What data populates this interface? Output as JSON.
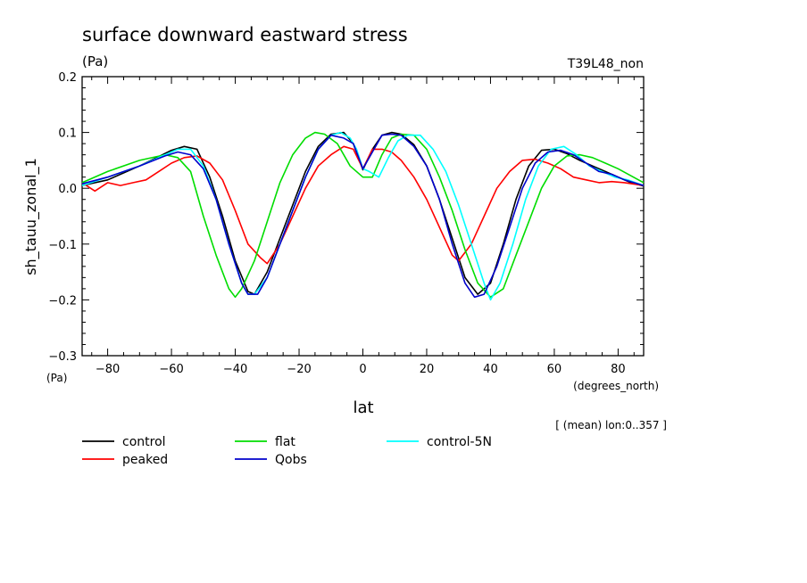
{
  "header": {
    "title": "surface downward eastward stress",
    "units": "(Pa)",
    "run_label": "T39L48_non",
    "mean_note": "[ (mean) lon:0..357 ]"
  },
  "chart_data": {
    "type": "line",
    "title": "surface downward eastward stress",
    "xlabel": "lat",
    "x_units": "(degrees_north)",
    "ylabel": "sh_tauu_zonal_1",
    "y_units": "(Pa)",
    "xlim": [
      -88,
      88
    ],
    "ylim": [
      -0.3,
      0.2
    ],
    "x_ticks": [
      -80,
      -60,
      -40,
      -20,
      0,
      20,
      40,
      60,
      80
    ],
    "x_tick_labels": [
      "−80",
      "−60",
      "−40",
      "−20",
      "0",
      "20",
      "40",
      "60",
      "80"
    ],
    "y_ticks": [
      0.2,
      0.1,
      0.0,
      -0.1,
      -0.2,
      -0.3
    ],
    "y_tick_labels": [
      "0.2",
      "0.1",
      "0.0",
      "−0.1",
      "−0.2",
      "−0.3"
    ],
    "grid": false,
    "legend_position": "bottom",
    "series": [
      {
        "name": "control",
        "color": "#000000",
        "x": [
          -88,
          -80,
          -70,
          -60,
          -56,
          -52,
          -48,
          -44,
          -40,
          -36,
          -34,
          -30,
          -26,
          -22,
          -18,
          -14,
          -10,
          -6,
          -3,
          0,
          3,
          6,
          9,
          12,
          16,
          20,
          24,
          28,
          32,
          36,
          40,
          44,
          48,
          52,
          56,
          60,
          64,
          68,
          72,
          76,
          80,
          84,
          88
        ],
        "y": [
          0.005,
          0.015,
          0.04,
          0.068,
          0.075,
          0.07,
          0.02,
          -0.05,
          -0.13,
          -0.185,
          -0.19,
          -0.15,
          -0.09,
          -0.03,
          0.03,
          0.075,
          0.097,
          0.1,
          0.08,
          0.033,
          0.07,
          0.095,
          0.1,
          0.097,
          0.078,
          0.04,
          -0.02,
          -0.09,
          -0.16,
          -0.19,
          -0.17,
          -0.1,
          -0.02,
          0.04,
          0.068,
          0.07,
          0.062,
          0.05,
          0.04,
          0.03,
          0.02,
          0.01,
          0.004
        ]
      },
      {
        "name": "peaked",
        "color": "#ff0000",
        "x": [
          -88,
          -84,
          -80,
          -76,
          -72,
          -68,
          -64,
          -60,
          -56,
          -52,
          -48,
          -44,
          -40,
          -36,
          -32,
          -30,
          -26,
          -22,
          -18,
          -14,
          -10,
          -6,
          -3,
          0,
          3,
          6,
          9,
          12,
          16,
          20,
          24,
          28,
          30,
          34,
          38,
          42,
          46,
          50,
          54,
          58,
          62,
          66,
          70,
          74,
          78,
          82,
          88
        ],
        "y": [
          0.01,
          -0.005,
          0.01,
          0.005,
          0.01,
          0.015,
          0.03,
          0.045,
          0.055,
          0.058,
          0.045,
          0.015,
          -0.04,
          -0.1,
          -0.125,
          -0.135,
          -0.1,
          -0.05,
          0.0,
          0.04,
          0.06,
          0.075,
          0.07,
          0.035,
          0.07,
          0.07,
          0.065,
          0.05,
          0.02,
          -0.02,
          -0.07,
          -0.12,
          -0.13,
          -0.1,
          -0.05,
          0.0,
          0.03,
          0.05,
          0.052,
          0.045,
          0.035,
          0.02,
          0.015,
          0.01,
          0.012,
          0.01,
          0.005
        ]
      },
      {
        "name": "flat",
        "color": "#00dd00",
        "x": [
          -88,
          -80,
          -70,
          -62,
          -58,
          -54,
          -50,
          -46,
          -42,
          -40,
          -38,
          -34,
          -30,
          -26,
          -22,
          -18,
          -15,
          -12,
          -8,
          -4,
          0,
          3,
          6,
          9,
          12,
          16,
          20,
          24,
          28,
          32,
          36,
          40,
          44,
          48,
          52,
          56,
          60,
          64,
          68,
          72,
          76,
          80,
          88
        ],
        "y": [
          0.01,
          0.03,
          0.05,
          0.06,
          0.055,
          0.03,
          -0.05,
          -0.12,
          -0.18,
          -0.195,
          -0.18,
          -0.13,
          -0.06,
          0.01,
          0.06,
          0.09,
          0.1,
          0.097,
          0.08,
          0.04,
          0.02,
          0.02,
          0.06,
          0.09,
          0.097,
          0.095,
          0.07,
          0.02,
          -0.04,
          -0.11,
          -0.17,
          -0.195,
          -0.18,
          -0.12,
          -0.06,
          0.0,
          0.04,
          0.058,
          0.06,
          0.055,
          0.045,
          0.035,
          0.01
        ]
      },
      {
        "name": "control-5N",
        "color": "#00ffff",
        "x": [
          -88,
          -80,
          -70,
          -62,
          -58,
          -54,
          -50,
          -46,
          -42,
          -38,
          -36,
          -34,
          -30,
          -26,
          -22,
          -18,
          -14,
          -10,
          -7,
          -4,
          -2,
          0,
          2,
          5,
          8,
          11,
          14,
          18,
          22,
          26,
          30,
          34,
          38,
          40,
          43,
          47,
          51,
          55,
          59,
          63,
          67,
          71,
          75,
          79,
          83,
          88
        ],
        "y": [
          0.005,
          0.02,
          0.04,
          0.06,
          0.07,
          0.07,
          0.04,
          -0.02,
          -0.1,
          -0.17,
          -0.19,
          -0.19,
          -0.16,
          -0.1,
          -0.04,
          0.02,
          0.07,
          0.095,
          0.1,
          0.09,
          0.07,
          0.035,
          0.03,
          0.02,
          0.055,
          0.085,
          0.095,
          0.095,
          0.07,
          0.03,
          -0.03,
          -0.1,
          -0.17,
          -0.2,
          -0.17,
          -0.1,
          -0.02,
          0.04,
          0.07,
          0.075,
          0.06,
          0.04,
          0.03,
          0.02,
          0.015,
          0.005
        ]
      },
      {
        "name": "Qobs",
        "color": "#0000cc",
        "x": [
          -88,
          -80,
          -70,
          -62,
          -58,
          -54,
          -50,
          -46,
          -42,
          -38,
          -36,
          -33,
          -30,
          -26,
          -22,
          -18,
          -14,
          -10,
          -6,
          -3,
          0,
          3,
          6,
          9,
          12,
          16,
          20,
          24,
          28,
          32,
          35,
          38,
          42,
          46,
          50,
          54,
          58,
          62,
          66,
          70,
          74,
          78,
          82,
          88
        ],
        "y": [
          0.008,
          0.02,
          0.04,
          0.058,
          0.065,
          0.06,
          0.035,
          -0.02,
          -0.1,
          -0.17,
          -0.19,
          -0.19,
          -0.16,
          -0.1,
          -0.04,
          0.02,
          0.07,
          0.095,
          0.09,
          0.08,
          0.035,
          0.065,
          0.095,
          0.097,
          0.095,
          0.075,
          0.04,
          -0.02,
          -0.1,
          -0.17,
          -0.195,
          -0.19,
          -0.14,
          -0.07,
          0.0,
          0.045,
          0.065,
          0.068,
          0.06,
          0.045,
          0.03,
          0.025,
          0.015,
          0.005
        ]
      }
    ]
  },
  "legend": {
    "items": [
      {
        "label": "control",
        "color": "#000000"
      },
      {
        "label": "peaked",
        "color": "#ff0000"
      },
      {
        "label": "flat",
        "color": "#00dd00"
      },
      {
        "label": "Qobs",
        "color": "#0000cc"
      },
      {
        "label": "control-5N",
        "color": "#00ffff"
      }
    ]
  }
}
